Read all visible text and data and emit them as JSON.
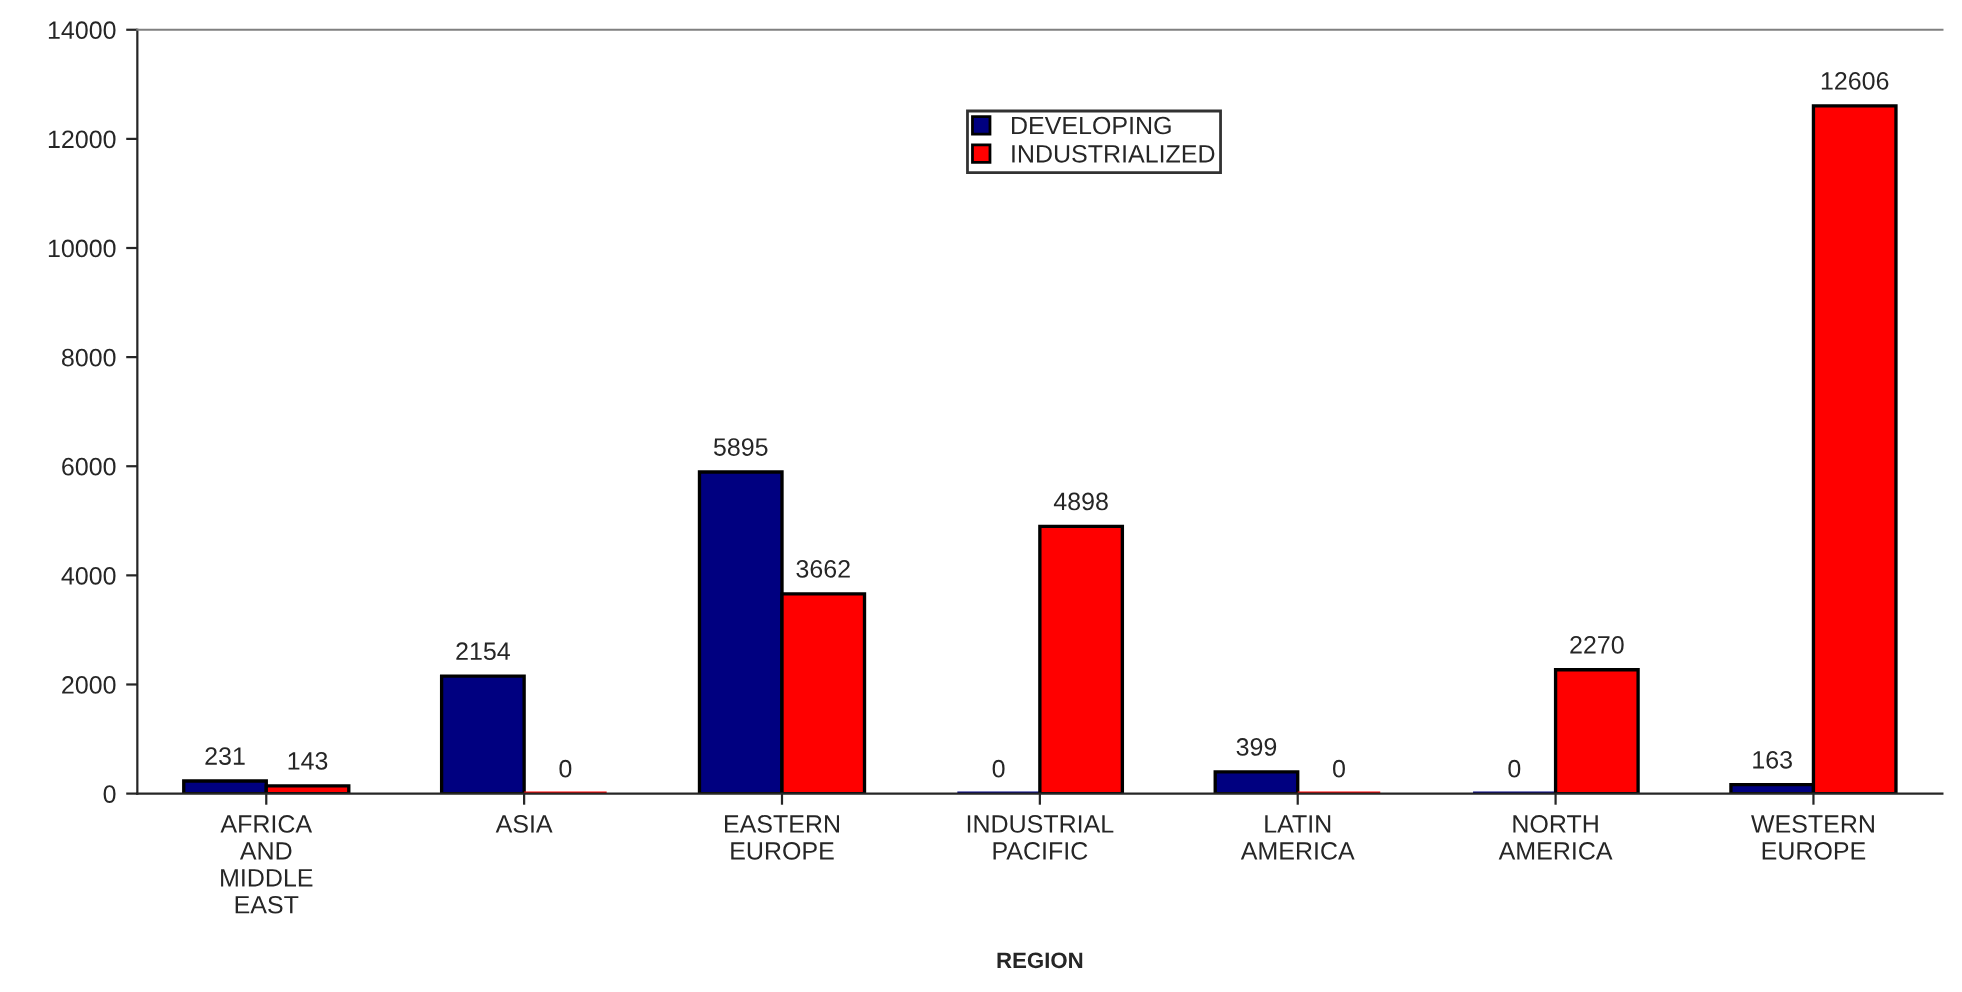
{
  "chart_data": {
    "type": "bar",
    "xlabel": "REGION",
    "categories": [
      "AFRICA\nAND\nMIDDLE\nEAST",
      "ASIA",
      "EASTERN\nEUROPE",
      "INDUSTRIAL\nPACIFIC",
      "LATIN\nAMERICA",
      "NORTH\nAMERICA",
      "WESTERN\nEUROPE"
    ],
    "series": [
      {
        "name": "DEVELOPING",
        "color": "#000080",
        "values": [
          231,
          2154,
          5895,
          0,
          399,
          0,
          163
        ]
      },
      {
        "name": "INDUSTRIALIZED",
        "color": "#ff0000",
        "values": [
          143,
          0,
          3662,
          4898,
          0,
          2270,
          12606
        ]
      }
    ],
    "ylim": [
      0,
      14000
    ],
    "yticks": [
      0,
      2000,
      4000,
      6000,
      8000,
      10000,
      12000,
      14000
    ],
    "data_labels": true,
    "legend": "top",
    "grid": false
  }
}
